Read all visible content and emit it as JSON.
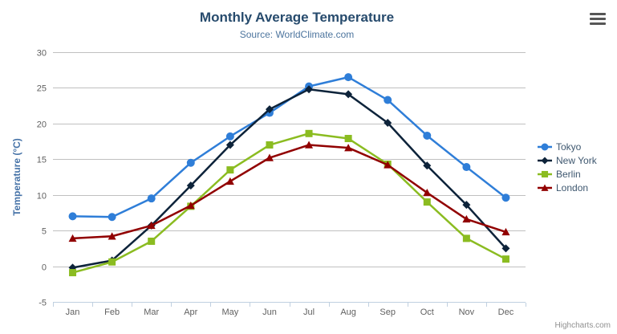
{
  "credits": "Highcharts.com",
  "icons": {
    "context_menu": "hamburger-menu-icon"
  },
  "colors": {
    "title": "#274b6d",
    "subtitle": "#4d759e",
    "axis_title": "#4572a7",
    "tick_label": "#606060",
    "gridline": "#c0c0c0",
    "axis_line": "#c0d0e0",
    "legend_text": "#3e576f",
    "credits_text": "#909090"
  },
  "chart_data": {
    "type": "line",
    "title": "Monthly Average Temperature",
    "subtitle": "Source: WorldClimate.com",
    "categories": [
      "Jan",
      "Feb",
      "Mar",
      "Apr",
      "May",
      "Jun",
      "Jul",
      "Aug",
      "Sep",
      "Oct",
      "Nov",
      "Dec"
    ],
    "xlabel": "",
    "ylabel": "Temperature (°C)",
    "ylim": [
      -5,
      30
    ],
    "ytick_interval": 5,
    "grid": true,
    "legend_position": "right",
    "series": [
      {
        "name": "Tokyo",
        "color": "#2f7ed8",
        "marker": "circle",
        "values": [
          7.0,
          6.9,
          9.5,
          14.5,
          18.2,
          21.5,
          25.2,
          26.5,
          23.3,
          18.3,
          13.9,
          9.6
        ]
      },
      {
        "name": "New York",
        "color": "#0d233a",
        "marker": "diamond",
        "values": [
          -0.2,
          0.8,
          5.7,
          11.3,
          17.0,
          22.0,
          24.8,
          24.1,
          20.1,
          14.1,
          8.6,
          2.5
        ]
      },
      {
        "name": "Berlin",
        "color": "#8bbc21",
        "marker": "square",
        "values": [
          -0.9,
          0.6,
          3.5,
          8.4,
          13.5,
          17.0,
          18.6,
          17.9,
          14.3,
          9.0,
          3.9,
          1.0
        ]
      },
      {
        "name": "London",
        "color": "#910000",
        "marker": "triangle",
        "values": [
          3.9,
          4.2,
          5.7,
          8.5,
          11.9,
          15.2,
          17.0,
          16.6,
          14.2,
          10.3,
          6.6,
          4.8
        ]
      }
    ]
  }
}
